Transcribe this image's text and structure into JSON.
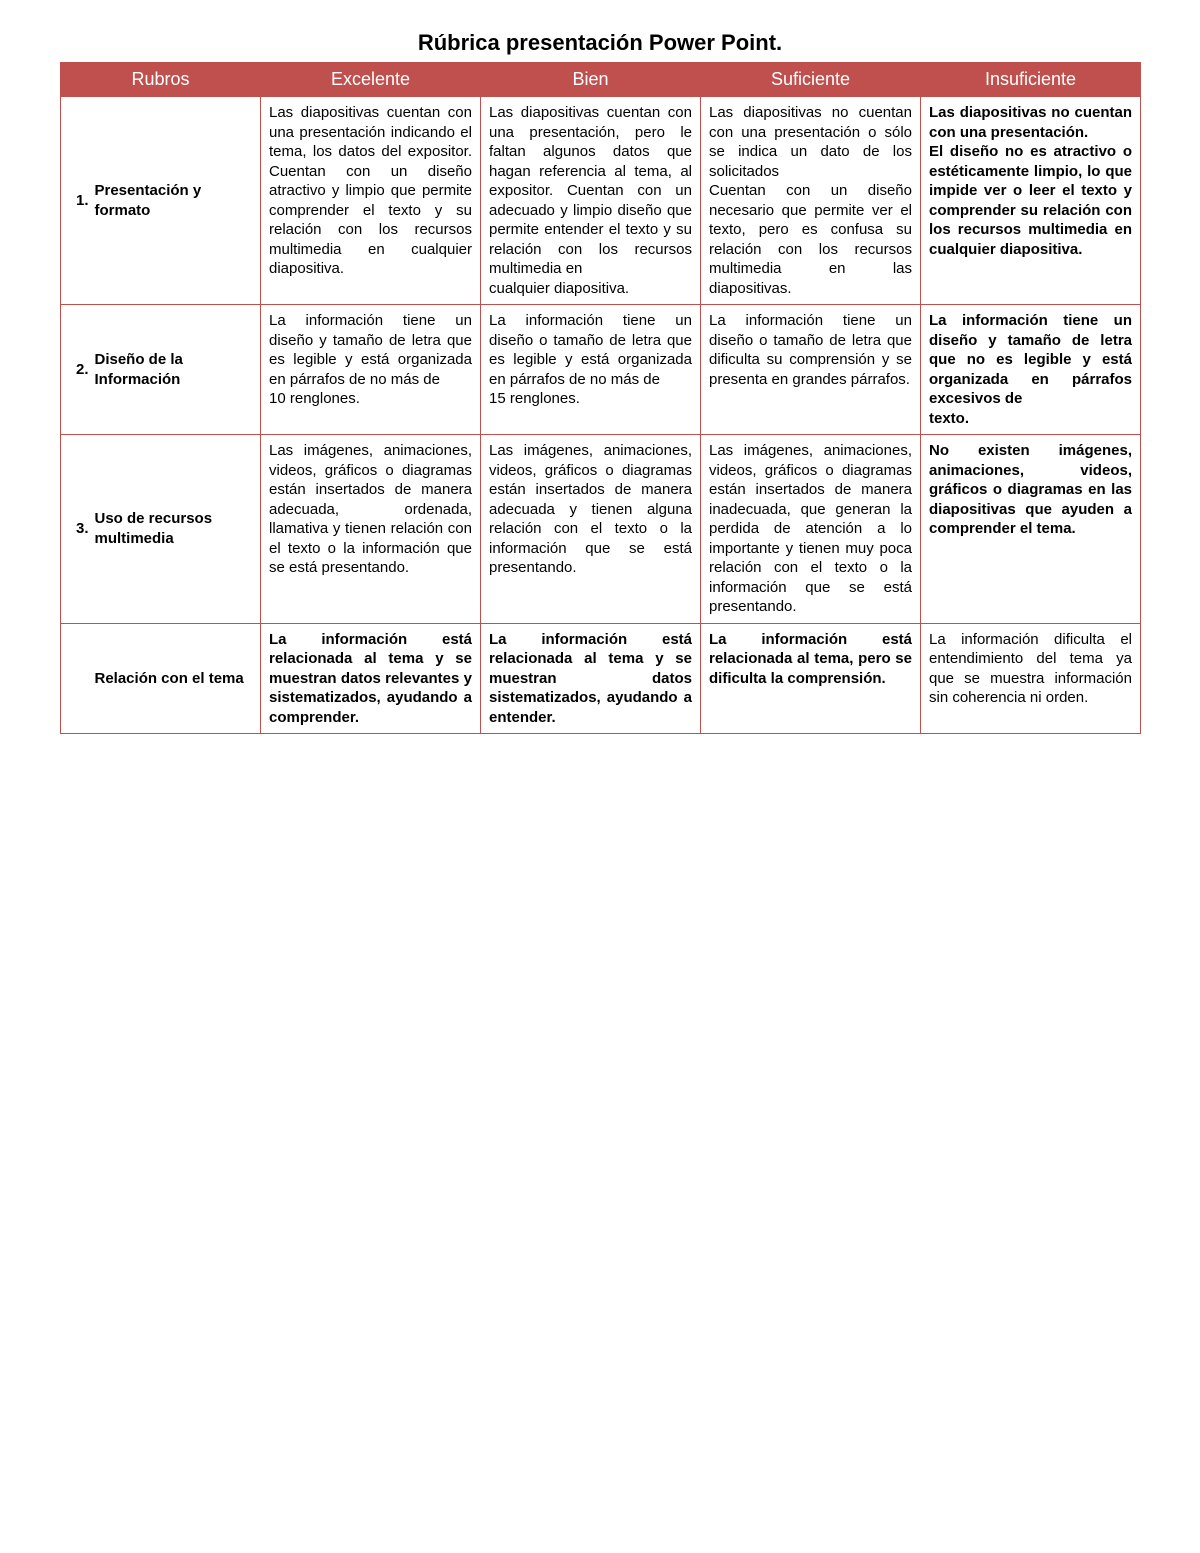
{
  "title": "Rúbrica presentación  Power Point.",
  "colors": {
    "header_bg": "#c0504d",
    "header_text": "#ffffff",
    "border": "#c0504d",
    "body_text": "#000000",
    "page_bg": "#ffffff"
  },
  "typography": {
    "title_fontsize": 22,
    "header_fontsize": 18,
    "cell_fontsize": 15,
    "font_family": "Arial"
  },
  "columns": [
    "Rubros",
    "Excelente",
    "Bien",
    "Suficiente",
    "Insuficiente"
  ],
  "rows": [
    {
      "num": "1.",
      "rubro": "Presentación y formato",
      "cells": [
        {
          "text": "Las diapositivas cuentan con una presentación indicando el tema, los datos del expositor. Cuentan con un diseño atractivo y limpio que permite comprender el texto y su relación con los recursos multimedia en cualquier diapositiva.",
          "bold": false
        },
        {
          "text": "Las diapositivas cuentan con una presentación, pero le faltan algunos datos que hagan referencia al tema, al expositor. Cuentan con un adecuado y limpio diseño que permite entender el texto y su relación con los recursos multimedia en\ncualquier diapositiva.",
          "bold": false
        },
        {
          "text": "Las diapositivas no cuentan con una presentación o sólo se indica un dato de los solicitados\nCuentan con un diseño necesario que permite ver el texto, pero es confusa su relación con los recursos multimedia en las diapositivas.",
          "bold": false
        },
        {
          "text": "Las diapositivas no cuentan con una presentación.\nEl diseño no es atractivo o estéticamente limpio, lo que impide ver o leer el texto y comprender su relación con los recursos multimedia en cualquier diapositiva.",
          "bold": true
        }
      ]
    },
    {
      "num": "2.",
      "rubro": "Diseño de la Información",
      "cells": [
        {
          "text": "La información tiene un diseño y tamaño de letra que es legible y está organizada en párrafos de no más de\n10 renglones.",
          "bold": false
        },
        {
          "text": "La información tiene un diseño o tamaño de letra que es legible y está organizada en párrafos de no más de\n15 renglones.",
          "bold": false
        },
        {
          "text": "La información tiene un diseño o tamaño de letra que dificulta su comprensión y se presenta en grandes párrafos.",
          "bold": false
        },
        {
          "text": "La información tiene un diseño y tamaño de letra que no es legible y está organizada en párrafos excesivos de\ntexto.",
          "bold": true
        }
      ]
    },
    {
      "num": "3.",
      "rubro": "Uso de recursos multimedia",
      "cells": [
        {
          "text": "Las imágenes, animaciones, videos, gráficos o diagramas están insertados de manera adecuada, ordenada, llamativa y tienen relación con el texto o la información que se está presentando.",
          "bold": false
        },
        {
          "text": "Las imágenes, animaciones, videos, gráficos o diagramas están insertados de manera adecuada y tienen alguna relación con el texto o la información que se está presentando.",
          "bold": false
        },
        {
          "text": "Las imágenes, animaciones, videos, gráficos o diagramas están insertados de manera inadecuada, que generan la perdida de atención a lo importante y tienen muy poca relación con el texto o la información que se está presentando.",
          "bold": false
        },
        {
          "text": "No existen imágenes, animaciones, videos, gráficos o diagramas en las diapositivas que ayuden a comprender el tema.",
          "bold": true
        }
      ]
    },
    {
      "num": "",
      "rubro": "Relación con el tema",
      "cells": [
        {
          "text": "La información está relacionada al tema y se muestran datos relevantes y sistematizados, ayudando a comprender.",
          "bold": true
        },
        {
          "text": "La información está relacionada al tema y se muestran datos sistematizados, ayudando a entender.",
          "bold": true
        },
        {
          "text": "La información está relacionada al tema, pero se dificulta la comprensión.",
          "bold": true
        },
        {
          "text": "La información dificulta el entendimiento del tema ya que se muestra información sin coherencia ni orden.",
          "bold": false
        }
      ]
    }
  ]
}
